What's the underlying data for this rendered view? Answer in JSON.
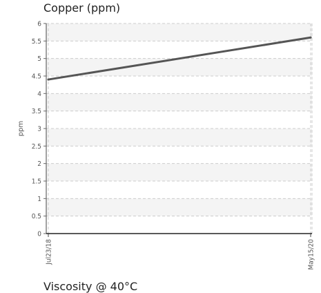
{
  "chart_data": {
    "type": "line",
    "title": "Copper (ppm)",
    "xlabel": "",
    "ylabel": "ppm",
    "categories": [
      "Jul23/18",
      "May15/20"
    ],
    "series": [
      {
        "values": [
          4.4,
          5.6
        ]
      }
    ],
    "ylim": [
      0,
      6
    ],
    "yticks": [
      0,
      0.5,
      1,
      1.5,
      2,
      2.5,
      3,
      3.5,
      4,
      4.5,
      5,
      5.5,
      6
    ],
    "ytick_labels": [
      "0",
      "0.5",
      "1",
      "1.5",
      "2",
      "2.5",
      "3",
      "3.5",
      "4",
      "4.5",
      "5",
      "5.5",
      "6"
    ],
    "grid": true,
    "line_color": "#555555",
    "band_color": "#f4f4f4"
  },
  "next_chart": {
    "title": "Viscosity @ 40°C"
  }
}
